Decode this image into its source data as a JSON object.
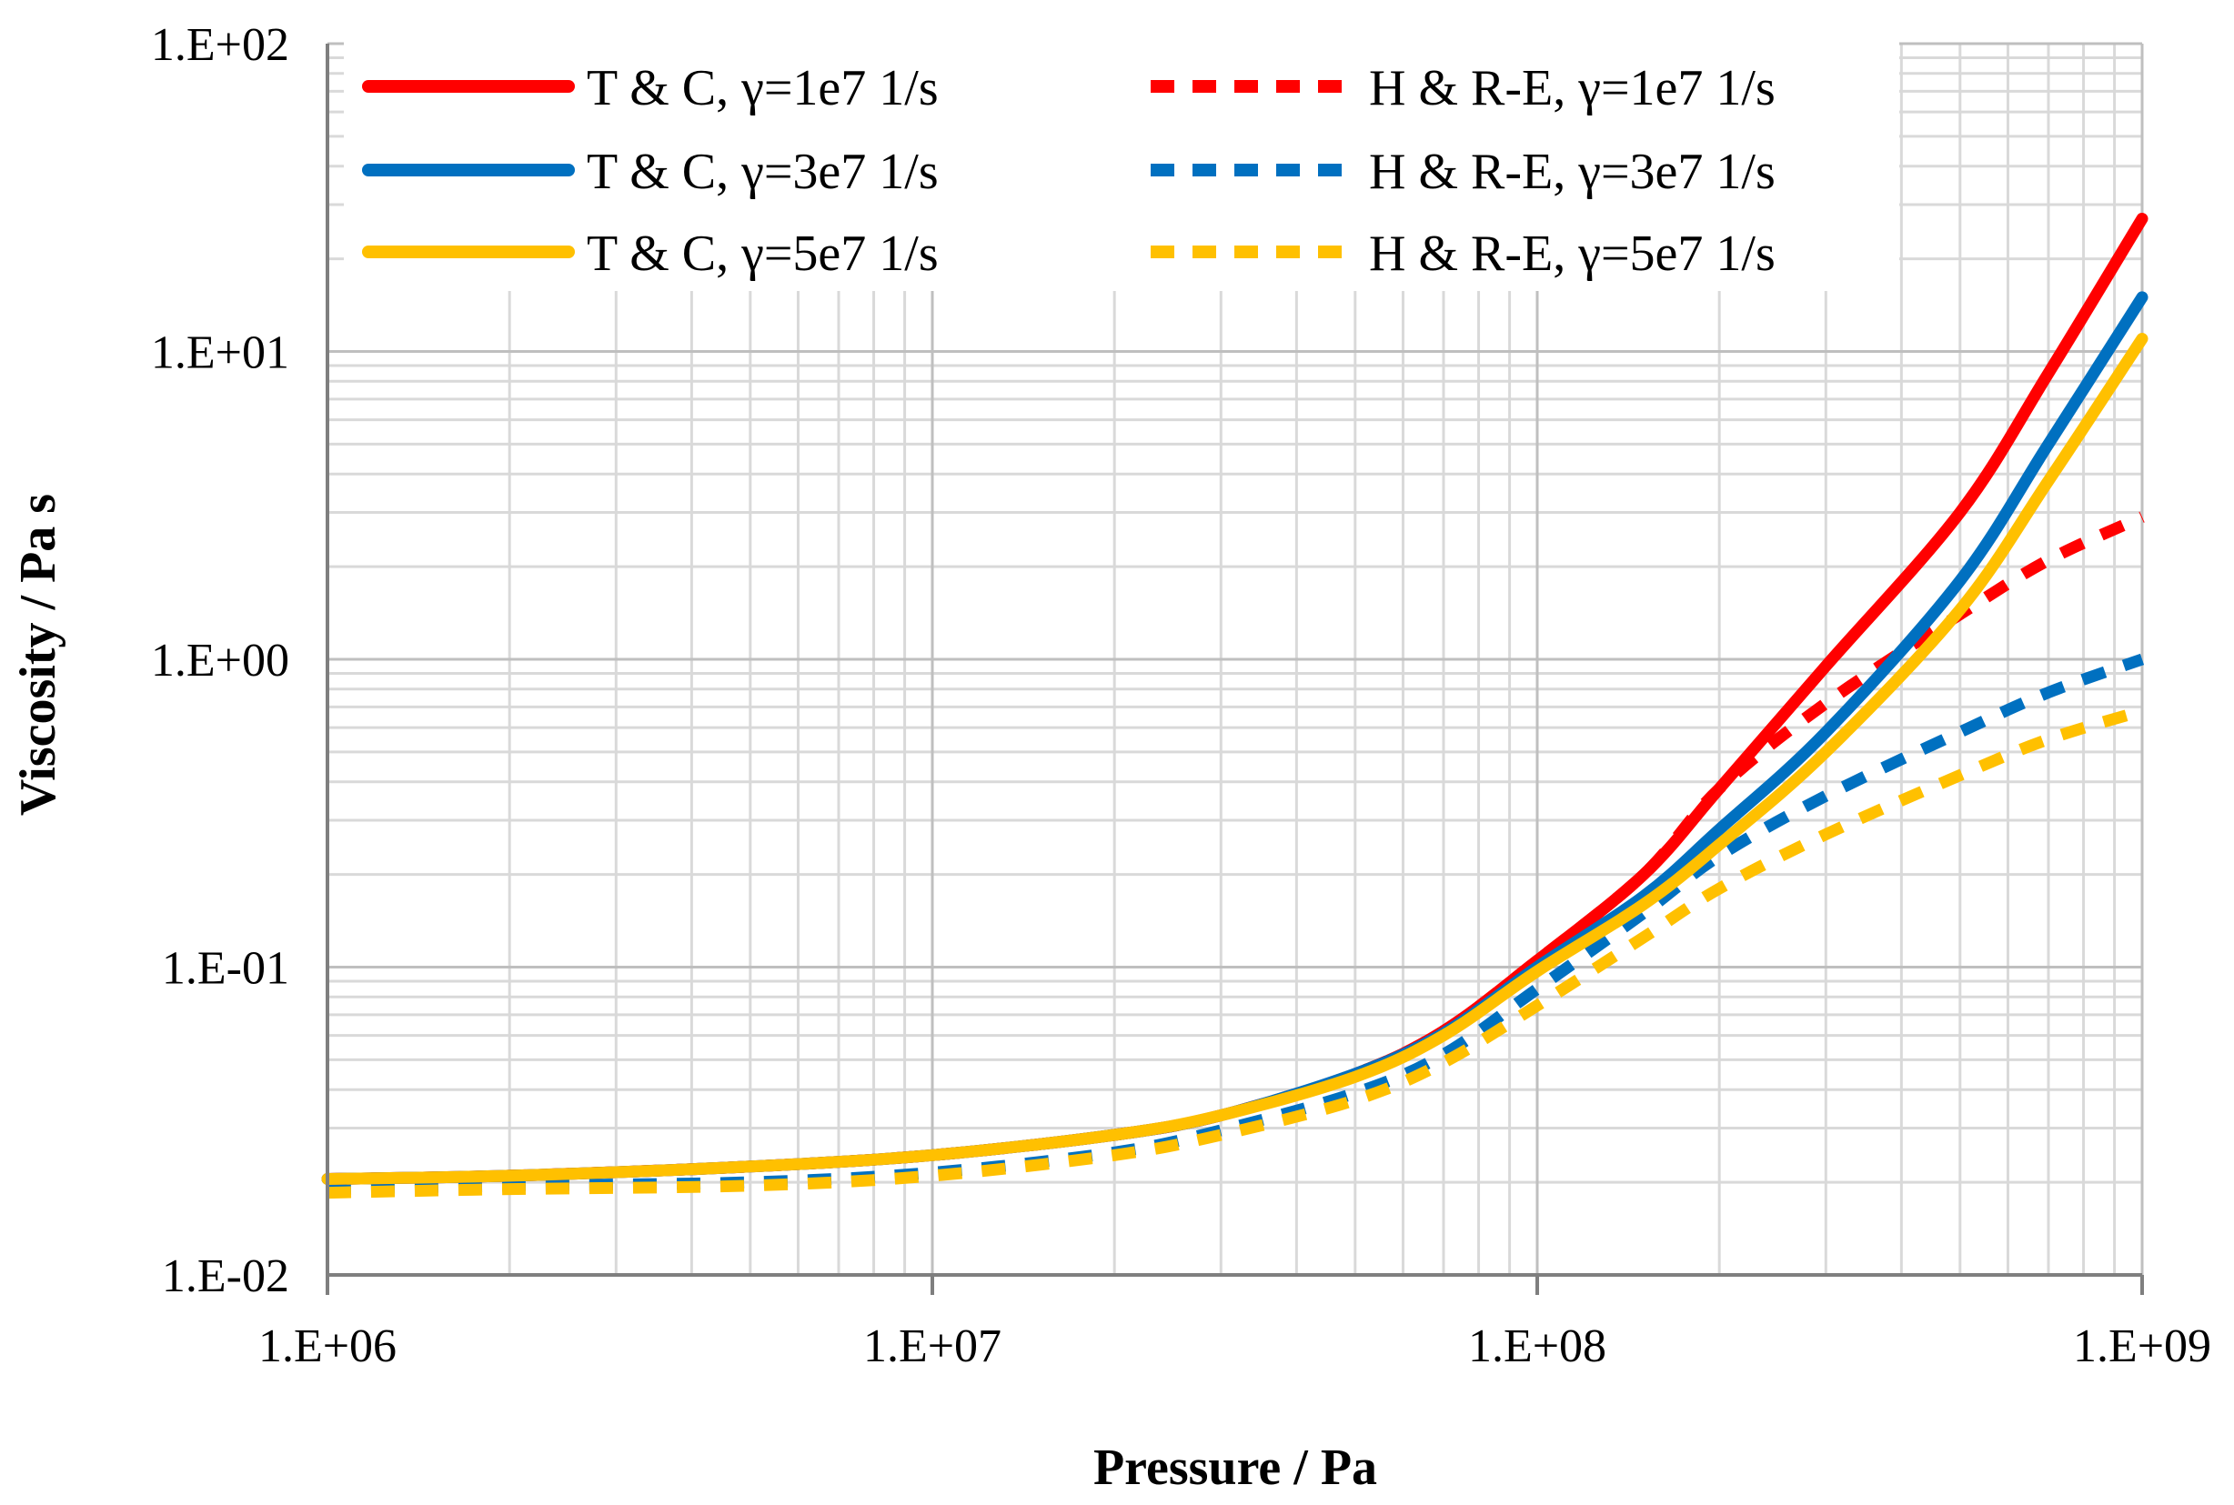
{
  "chart_data": {
    "type": "line",
    "xscale": "log",
    "yscale": "log",
    "xlabel": "Pressure / Pa",
    "ylabel": "Viscosity / Pa s",
    "xlim": [
      1000000,
      1000000000
    ],
    "ylim": [
      0.01,
      100
    ],
    "x_tick_labels": [
      "1.E+06",
      "1.E+07",
      "1.E+08",
      "1.E+09"
    ],
    "y_tick_labels": [
      "1.E-02",
      "1.E-01",
      "1.E+00",
      "1.E+01",
      "1.E+02"
    ],
    "grid": true,
    "legend_position": "top",
    "x": [
      1000000,
      2000000,
      5000000,
      10000000,
      20000000,
      30000000,
      50000000,
      70000000,
      100000000,
      150000000,
      200000000,
      300000000,
      500000000,
      700000000,
      1000000000
    ],
    "series": [
      {
        "name": "T & C, γ=1e7 1/s",
        "color": "#ff0000",
        "dash": "solid",
        "values": [
          0.0205,
          0.021,
          0.0225,
          0.0245,
          0.0285,
          0.033,
          0.045,
          0.062,
          0.105,
          0.2,
          0.38,
          0.95,
          3.0,
          8.5,
          27.0
        ]
      },
      {
        "name": "T & C, γ=3e7 1/s",
        "color": "#0070c0",
        "dash": "solid",
        "values": [
          0.0205,
          0.021,
          0.0225,
          0.0245,
          0.0285,
          0.033,
          0.045,
          0.061,
          0.1,
          0.17,
          0.28,
          0.58,
          1.8,
          5.0,
          15.0
        ]
      },
      {
        "name": "T & C, γ=5e7 1/s",
        "color": "#ffc000",
        "dash": "solid",
        "values": [
          0.0205,
          0.021,
          0.0225,
          0.0245,
          0.0285,
          0.033,
          0.044,
          0.06,
          0.097,
          0.16,
          0.25,
          0.5,
          1.45,
          3.8,
          11.0
        ]
      },
      {
        "name": "H & R-E, γ=1e7 1/s",
        "color": "#ff0000",
        "dash": "dashed",
        "values": [
          0.0205,
          0.021,
          0.0225,
          0.0245,
          0.0285,
          0.033,
          0.045,
          0.062,
          0.105,
          0.2,
          0.38,
          0.72,
          1.4,
          2.1,
          2.9
        ]
      },
      {
        "name": "H & R-E, γ=3e7 1/s",
        "color": "#0070c0",
        "dash": "dashed",
        "values": [
          0.019,
          0.0195,
          0.02,
          0.0215,
          0.025,
          0.0295,
          0.039,
          0.052,
          0.085,
          0.15,
          0.23,
          0.36,
          0.58,
          0.78,
          1.0
        ]
      },
      {
        "name": "H & R-E, γ=5e7 1/s",
        "color": "#ffc000",
        "dash": "dashed",
        "values": [
          0.0185,
          0.019,
          0.0195,
          0.021,
          0.0245,
          0.0285,
          0.037,
          0.049,
          0.075,
          0.125,
          0.18,
          0.27,
          0.42,
          0.55,
          0.68
        ]
      }
    ]
  }
}
